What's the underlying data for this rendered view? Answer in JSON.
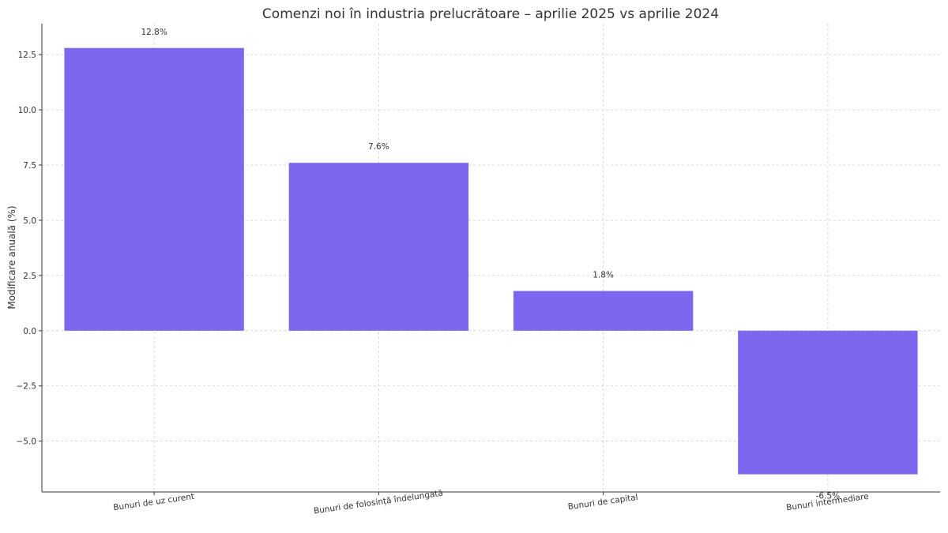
{
  "chart_data": {
    "type": "bar",
    "title": "Comenzi noi în industria prelucrătoare – aprilie 2025 vs aprilie 2024",
    "xlabel": "",
    "ylabel": "Modificare anuală (%)",
    "categories": [
      "Bunuri de uz curent",
      "Bunuri de folosință îndelungată",
      "Bunuri de capital",
      "Bunuri intermediare"
    ],
    "values": [
      12.8,
      7.6,
      1.8,
      -6.5
    ],
    "value_labels": [
      "12.8%",
      "7.6%",
      "1.8%",
      "-6.5%"
    ],
    "ylim": [
      -7.3,
      13.9
    ],
    "yticks": [
      -5.0,
      -2.5,
      0.0,
      2.5,
      5.0,
      7.5,
      10.0,
      12.5
    ],
    "ytick_labels": [
      "−5.0",
      "−2.5",
      "0.0",
      "2.5",
      "5.0",
      "7.5",
      "10.0",
      "12.5"
    ],
    "grid": true,
    "bar_color": "#7b68ee"
  }
}
